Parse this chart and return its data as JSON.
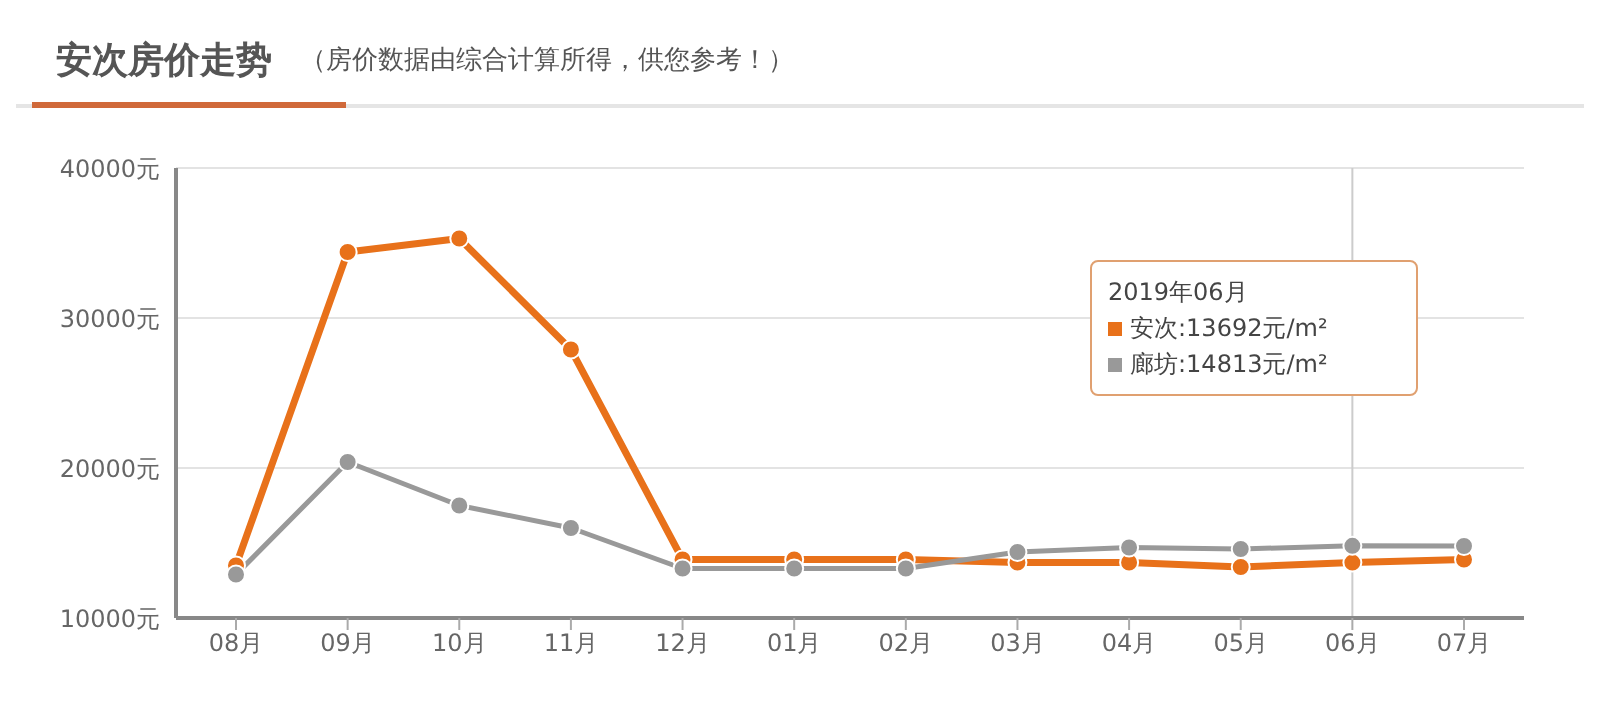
{
  "chart_data": {
    "type": "line",
    "title": "安次房价走势",
    "subtitle": "（房价数据由综合计算所得，供您参考！）",
    "categories": [
      "08月",
      "09月",
      "10月",
      "11月",
      "12月",
      "01月",
      "02月",
      "03月",
      "04月",
      "05月",
      "06月",
      "07月"
    ],
    "series": [
      {
        "color": "#e8711a",
        "values": [
          13500,
          34400,
          35300,
          27900,
          13900,
          13900,
          13900,
          13700,
          13700,
          13400,
          13692,
          13900
        ]
      },
      {
        "color": "#999999",
        "values": [
          12900,
          20400,
          17500,
          16000,
          13300,
          13300,
          13300,
          14400,
          14700,
          14600,
          14813,
          14800
        ]
      }
    ],
    "ylim": [
      10000,
      40000
    ],
    "yticks": [
      {
        "value": 10000,
        "label": "10000元"
      },
      {
        "value": 20000,
        "label": "20000元"
      },
      {
        "value": 30000,
        "label": "30000元"
      },
      {
        "value": 40000,
        "label": "40000元"
      }
    ],
    "grid": "y",
    "marker": "circle",
    "line_style": "solid",
    "ref_lines": [
      {
        "axis": "x",
        "value": "06月",
        "color": "#cccccc"
      }
    ],
    "annotations": [
      "2019年06月",
      "安次:13692元/m²",
      "廊坊:14813元/m²"
    ]
  }
}
